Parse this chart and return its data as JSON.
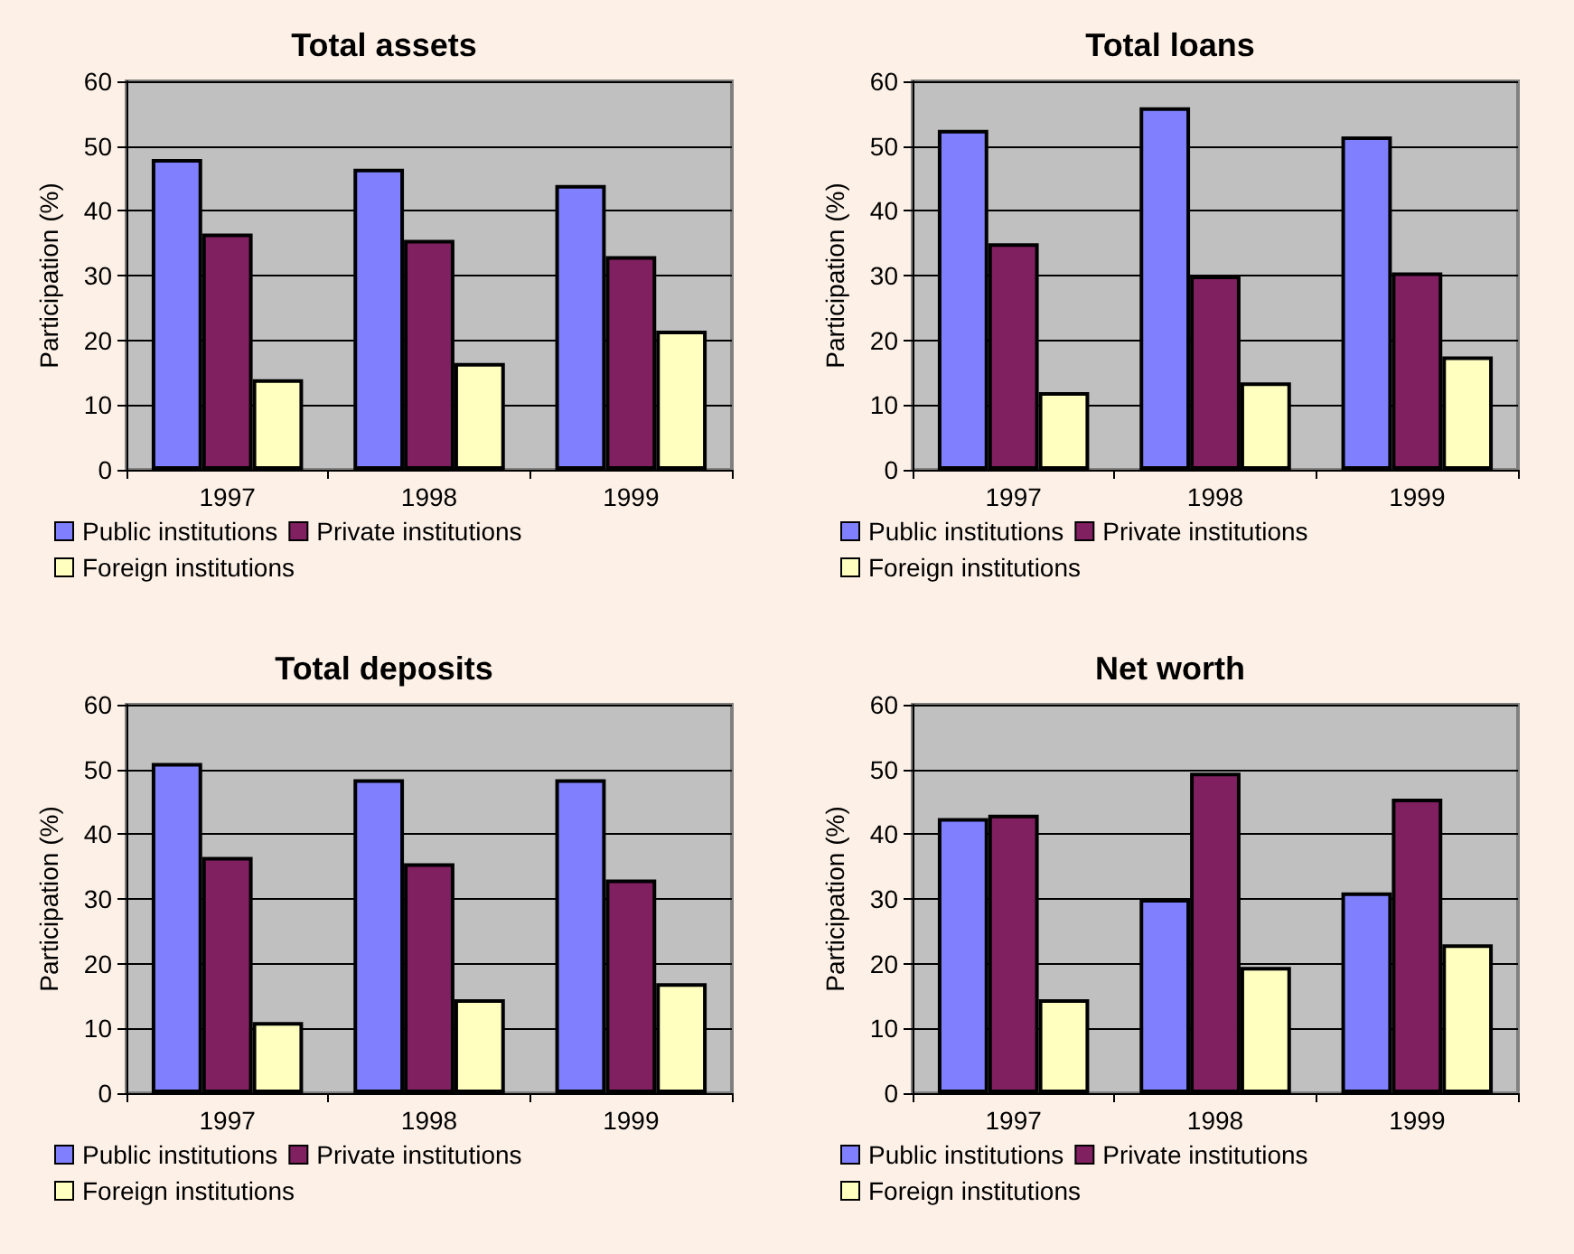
{
  "chart_data": [
    {
      "type": "bar",
      "title": "Total assets",
      "ylabel": "Participation (%)",
      "categories": [
        "1997",
        "1998",
        "1999"
      ],
      "series": [
        {
          "name": "Public institutions",
          "color": "#8080ff",
          "values": [
            48,
            46.5,
            44
          ]
        },
        {
          "name": "Private institutions",
          "color": "#802060",
          "values": [
            36.5,
            35.5,
            33
          ]
        },
        {
          "name": "Foreign institutions",
          "color": "#ffffc0",
          "values": [
            14,
            16.5,
            21.5
          ]
        }
      ],
      "ylim": [
        0,
        60
      ],
      "yticks": [
        0,
        10,
        20,
        30,
        40,
        50,
        60
      ],
      "grid": "y",
      "legend": "bottom"
    },
    {
      "type": "bar",
      "title": "Total loans",
      "ylabel": "Participation (%)",
      "categories": [
        "1997",
        "1998",
        "1999"
      ],
      "series": [
        {
          "name": "Public institutions",
          "color": "#8080ff",
          "values": [
            52.5,
            56,
            51.5
          ]
        },
        {
          "name": "Private institutions",
          "color": "#802060",
          "values": [
            35,
            30,
            30.5
          ]
        },
        {
          "name": "Foreign institutions",
          "color": "#ffffc0",
          "values": [
            12,
            13.5,
            17.5
          ]
        }
      ],
      "ylim": [
        0,
        60
      ],
      "yticks": [
        0,
        10,
        20,
        30,
        40,
        50,
        60
      ],
      "grid": "y",
      "legend": "bottom"
    },
    {
      "type": "bar",
      "title": "Total deposits",
      "ylabel": "Participation (%)",
      "categories": [
        "1997",
        "1998",
        "1999"
      ],
      "series": [
        {
          "name": "Public institutions",
          "color": "#8080ff",
          "values": [
            51,
            48.5,
            48.5
          ]
        },
        {
          "name": "Private institutions",
          "color": "#802060",
          "values": [
            36.5,
            35.5,
            33
          ]
        },
        {
          "name": "Foreign institutions",
          "color": "#ffffc0",
          "values": [
            11,
            14.5,
            17
          ]
        }
      ],
      "ylim": [
        0,
        60
      ],
      "yticks": [
        0,
        10,
        20,
        30,
        40,
        50,
        60
      ],
      "grid": "y",
      "legend": "bottom"
    },
    {
      "type": "bar",
      "title": "Net worth",
      "ylabel": "Participation (%)",
      "categories": [
        "1997",
        "1998",
        "1999"
      ],
      "series": [
        {
          "name": "Public institutions",
          "color": "#8080ff",
          "values": [
            42.5,
            30,
            31
          ]
        },
        {
          "name": "Private institutions",
          "color": "#802060",
          "values": [
            43,
            49.5,
            45.5
          ]
        },
        {
          "name": "Foreign institutions",
          "color": "#ffffc0",
          "values": [
            14.5,
            19.5,
            23
          ]
        }
      ],
      "ylim": [
        0,
        60
      ],
      "yticks": [
        0,
        10,
        20,
        30,
        40,
        50,
        60
      ],
      "grid": "y",
      "legend": "bottom"
    }
  ]
}
